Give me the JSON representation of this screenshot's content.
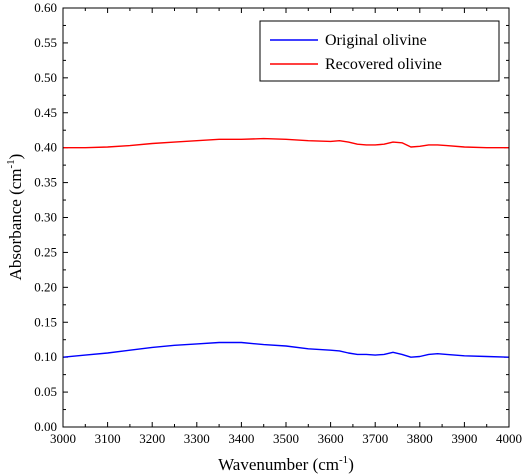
{
  "chart_data": {
    "type": "line",
    "xlabel": "Wavenumber (cm",
    "xlabel_sup": "-1",
    "xlabel_tail": ")",
    "ylabel": "Absorbance (cm",
    "ylabel_sup": "-1",
    "ylabel_tail": ")",
    "xlim": [
      3000,
      4000
    ],
    "ylim": [
      0.0,
      0.6
    ],
    "xticks": [
      "3000",
      "3100",
      "3200",
      "3300",
      "3400",
      "3500",
      "3600",
      "3700",
      "3800",
      "3900",
      "4000"
    ],
    "yticks": [
      "0.00",
      "0.05",
      "0.10",
      "0.15",
      "0.20",
      "0.25",
      "0.30",
      "0.35",
      "0.40",
      "0.45",
      "0.50",
      "0.55",
      "0.60"
    ],
    "legend_position": "top-right",
    "series": [
      {
        "name": "Original olivine",
        "color": "#0000ff",
        "x": [
          3000,
          3050,
          3100,
          3150,
          3200,
          3250,
          3300,
          3350,
          3400,
          3450,
          3500,
          3550,
          3600,
          3620,
          3640,
          3660,
          3680,
          3700,
          3720,
          3740,
          3760,
          3780,
          3800,
          3820,
          3840,
          3860,
          3900,
          3950,
          4000
        ],
        "y": [
          0.1,
          0.103,
          0.106,
          0.11,
          0.114,
          0.117,
          0.119,
          0.121,
          0.121,
          0.118,
          0.116,
          0.112,
          0.11,
          0.109,
          0.106,
          0.104,
          0.104,
          0.103,
          0.104,
          0.107,
          0.104,
          0.1,
          0.101,
          0.104,
          0.105,
          0.104,
          0.102,
          0.101,
          0.1
        ]
      },
      {
        "name": "Recovered olivine",
        "color": "#ff0000",
        "x": [
          3000,
          3050,
          3100,
          3150,
          3200,
          3250,
          3300,
          3350,
          3400,
          3450,
          3500,
          3550,
          3600,
          3620,
          3640,
          3660,
          3680,
          3700,
          3720,
          3740,
          3760,
          3780,
          3800,
          3820,
          3840,
          3860,
          3900,
          3950,
          4000
        ],
        "y": [
          0.4,
          0.4,
          0.401,
          0.403,
          0.406,
          0.408,
          0.41,
          0.412,
          0.412,
          0.413,
          0.412,
          0.41,
          0.409,
          0.41,
          0.408,
          0.405,
          0.404,
          0.404,
          0.405,
          0.408,
          0.407,
          0.401,
          0.402,
          0.404,
          0.404,
          0.403,
          0.401,
          0.4,
          0.4
        ]
      }
    ]
  }
}
